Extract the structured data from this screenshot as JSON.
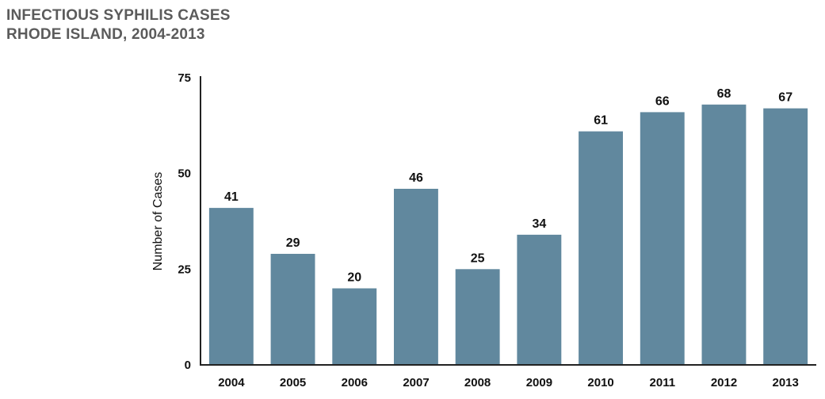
{
  "chart_data": {
    "type": "bar",
    "title_line1": "INFECTIOUS SYPHILIS CASES",
    "title_line2": "RHODE ISLAND, 2004-2013",
    "xlabel": "",
    "ylabel": "Number of Cases",
    "categories": [
      "2004",
      "2005",
      "2006",
      "2007",
      "2008",
      "2009",
      "2010",
      "2011",
      "2012",
      "2013"
    ],
    "values": [
      41,
      29,
      20,
      46,
      25,
      34,
      61,
      66,
      68,
      67
    ],
    "ylim": [
      0,
      75
    ],
    "yticks": [
      0,
      25,
      50,
      75
    ],
    "grid": false,
    "legend": "none",
    "bar_color": "#61889e",
    "axis_color": "#222222"
  }
}
